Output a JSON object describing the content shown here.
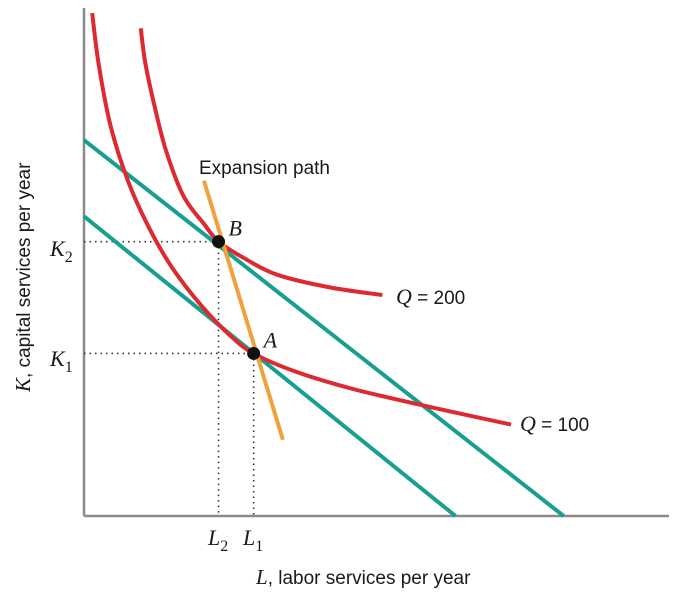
{
  "chart_data": {
    "type": "line",
    "title": "",
    "xlabel": {
      "var": "L",
      "rest": ", labor services per year"
    },
    "ylabel": {
      "var": "K",
      "rest": ", capital services per year"
    },
    "xlim": [
      0,
      10
    ],
    "ylim": [
      0,
      10
    ],
    "grid": false,
    "x_ticks": [
      {
        "var": "L",
        "sub": "2",
        "value": 2.3
      },
      {
        "var": "L",
        "sub": "1",
        "value": 2.9
      }
    ],
    "y_ticks": [
      {
        "var": "K",
        "sub": "2",
        "value": 5.4
      },
      {
        "var": "K",
        "sub": "1",
        "value": 3.2
      }
    ],
    "series": [
      {
        "kind": "isoquant",
        "label": {
          "var": "Q",
          "text": " = 200"
        },
        "color": "#dc2a30",
        "x": [
          0.97,
          1.05,
          1.2,
          1.4,
          1.7,
          2.05,
          2.3,
          2.7,
          3.3,
          4.2,
          5.1
        ],
        "y": [
          9.6,
          8.9,
          8.1,
          7.2,
          6.3,
          5.75,
          5.4,
          5.1,
          4.75,
          4.5,
          4.35
        ]
      },
      {
        "kind": "isoquant",
        "label": {
          "var": "Q",
          "text": " = 100"
        },
        "color": "#dc2a30",
        "x": [
          0.14,
          0.25,
          0.45,
          0.75,
          1.1,
          1.5,
          2.0,
          2.5,
          2.9,
          3.6,
          4.6,
          5.9,
          7.3
        ],
        "y": [
          9.9,
          8.9,
          7.7,
          6.6,
          5.7,
          4.9,
          4.15,
          3.55,
          3.2,
          2.85,
          2.5,
          2.15,
          1.8
        ]
      },
      {
        "kind": "isocost",
        "color": "#17a090",
        "x": [
          0,
          8.2
        ],
        "y": [
          7.4,
          0
        ]
      },
      {
        "kind": "isocost",
        "color": "#17a090",
        "x": [
          0,
          6.35
        ],
        "y": [
          5.9,
          0
        ]
      },
      {
        "kind": "expansion-path",
        "label": "Expansion path",
        "color": "#f0a23c",
        "x": [
          2.05,
          3.4
        ],
        "y": [
          6.6,
          1.5
        ]
      }
    ],
    "points": [
      {
        "name": "B",
        "x": 2.3,
        "y": 5.4
      },
      {
        "name": "A",
        "x": 2.9,
        "y": 3.2
      }
    ]
  }
}
